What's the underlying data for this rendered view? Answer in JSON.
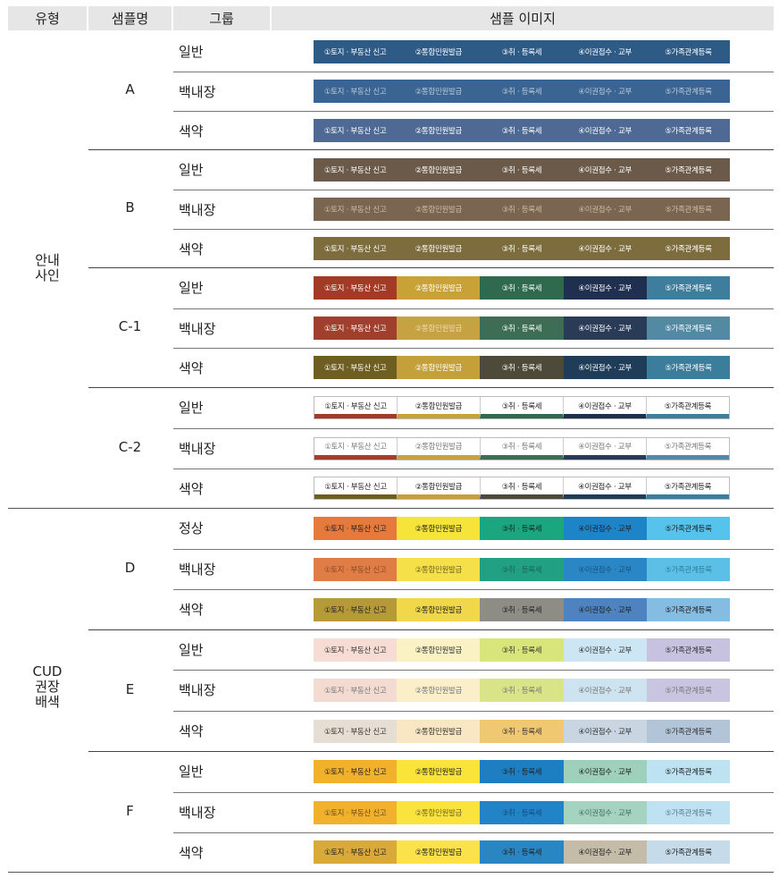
{
  "header": {
    "col_type": "유형",
    "col_name": "샘플명",
    "col_group": "그룹",
    "col_image": "샘플 이미지"
  },
  "labels": [
    "①토지 · 부동산 신고",
    "②통합민원발급",
    "③취 · 등록세",
    "④이권접수 · 교부",
    "⑤가족관계등록"
  ],
  "types": [
    {
      "label": "안내\n사인"
    },
    {
      "label": "CUD\n권장\n배색"
    }
  ],
  "samples": [
    {
      "name": "A",
      "rows": [
        {
          "group": "일반",
          "style": "solid",
          "bg": [
            "#2e5a86",
            "#2e5a86",
            "#2e5a86",
            "#2e5a86",
            "#2e5a86"
          ],
          "fg": [
            "#ffffff",
            "#ffffff",
            "#ffffff",
            "#ffffff",
            "#ffffff"
          ]
        },
        {
          "group": "백내장",
          "style": "solid",
          "bg": [
            "#3a6491",
            "#3a6491",
            "#3a6491",
            "#3a6491",
            "#3a6491"
          ],
          "fg": [
            "#b9c9db",
            "#b9c9db",
            "#b9c9db",
            "#b9c9db",
            "#b9c9db"
          ]
        },
        {
          "group": "색약",
          "style": "solid",
          "bg": [
            "#4e6a94",
            "#4e6a94",
            "#4e6a94",
            "#4e6a94",
            "#4e6a94"
          ],
          "fg": [
            "#ffffff",
            "#ffffff",
            "#ffffff",
            "#ffffff",
            "#ffffff"
          ]
        }
      ]
    },
    {
      "name": "B",
      "rows": [
        {
          "group": "일반",
          "style": "solid",
          "bg": [
            "#6b5a49",
            "#6b5a49",
            "#6b5a49",
            "#6b5a49",
            "#6b5a49"
          ],
          "fg": [
            "#ffffff",
            "#ffffff",
            "#ffffff",
            "#ffffff",
            "#ffffff"
          ]
        },
        {
          "group": "백내장",
          "style": "solid",
          "bg": [
            "#7a6650",
            "#7a6650",
            "#7a6650",
            "#7a6650",
            "#7a6650"
          ],
          "fg": [
            "#c9bba6",
            "#c9bba6",
            "#c9bba6",
            "#c9bba6",
            "#c9bba6"
          ]
        },
        {
          "group": "색약",
          "style": "solid",
          "bg": [
            "#7d6c3e",
            "#7d6c3e",
            "#7d6c3e",
            "#7d6c3e",
            "#7d6c3e"
          ],
          "fg": [
            "#ffffff",
            "#ffffff",
            "#ffffff",
            "#ffffff",
            "#ffffff"
          ]
        }
      ]
    },
    {
      "name": "C-1",
      "rows": [
        {
          "group": "일반",
          "style": "solid",
          "bg": [
            "#a33a26",
            "#c9a237",
            "#2f6a4f",
            "#1f2f4f",
            "#3f7d9c"
          ],
          "fg": [
            "#ffffff",
            "#ffffff",
            "#ffffff",
            "#ffffff",
            "#ffffff"
          ]
        },
        {
          "group": "백내장",
          "style": "solid",
          "bg": [
            "#a0402c",
            "#c6a243",
            "#3d6e55",
            "#2a3b57",
            "#5289a3"
          ],
          "fg": [
            "#ffffff",
            "#ebdcae",
            "#ffffff",
            "#ffffff",
            "#ffffff"
          ]
        },
        {
          "group": "색약",
          "style": "solid",
          "bg": [
            "#6f5e22",
            "#c4a03a",
            "#4e4a3a",
            "#1f3d58",
            "#3c7d9b"
          ],
          "fg": [
            "#ffffff",
            "#ffffff",
            "#ffffff",
            "#ffffff",
            "#ffffff"
          ]
        }
      ]
    },
    {
      "name": "C-2",
      "rows": [
        {
          "group": "일반",
          "style": "bar",
          "bg": [
            "#ffffff",
            "#ffffff",
            "#ffffff",
            "#ffffff",
            "#ffffff"
          ],
          "fg": [
            "#222222",
            "#222222",
            "#222222",
            "#222222",
            "#222222"
          ],
          "bar": [
            "#a33a26",
            "#c9a237",
            "#2f6a4f",
            "#1f2f4f",
            "#3f7d9c"
          ]
        },
        {
          "group": "백내장",
          "style": "bar",
          "bg": [
            "#ffffff",
            "#ffffff",
            "#ffffff",
            "#ffffff",
            "#ffffff"
          ],
          "fg": [
            "#777777",
            "#777777",
            "#777777",
            "#777777",
            "#777777"
          ],
          "bar": [
            "#a0402c",
            "#c6a243",
            "#3d6e55",
            "#2a3b57",
            "#5289a3"
          ]
        },
        {
          "group": "색약",
          "style": "bar",
          "bg": [
            "#ffffff",
            "#ffffff",
            "#ffffff",
            "#ffffff",
            "#ffffff"
          ],
          "fg": [
            "#222222",
            "#222222",
            "#222222",
            "#222222",
            "#222222"
          ],
          "bar": [
            "#6f5e22",
            "#c4a03a",
            "#4e4a3a",
            "#1f3d58",
            "#3c7d9b"
          ]
        }
      ]
    },
    {
      "name": "D",
      "rows": [
        {
          "group": "정상",
          "style": "solid",
          "bg": [
            "#e67a3c",
            "#f7e43a",
            "#1aa67e",
            "#1e84c8",
            "#56c3ec"
          ],
          "fg": [
            "#222222",
            "#222222",
            "#222222",
            "#222222",
            "#222222"
          ]
        },
        {
          "group": "백내장",
          "style": "solid",
          "bg": [
            "#e07c45",
            "#f5e04a",
            "#22a083",
            "#2a86c4",
            "#5cc0e6"
          ],
          "fg": [
            "#8a4a26",
            "#6e6320",
            "#16684f",
            "#16557e",
            "#2f7e9c"
          ]
        },
        {
          "group": "색약",
          "style": "solid",
          "bg": [
            "#b69a38",
            "#f0d84a",
            "#8d8d86",
            "#4f83c0",
            "#85bce4"
          ],
          "fg": [
            "#222222",
            "#222222",
            "#222222",
            "#222222",
            "#222222"
          ]
        }
      ]
    },
    {
      "name": "E",
      "rows": [
        {
          "group": "일반",
          "style": "solid",
          "bg": [
            "#f6dcd2",
            "#fbf2c4",
            "#d7e57a",
            "#cce6f3",
            "#c6c2e0"
          ],
          "fg": [
            "#333333",
            "#333333",
            "#333333",
            "#333333",
            "#333333"
          ]
        },
        {
          "group": "백내장",
          "style": "solid",
          "bg": [
            "#f3dbd2",
            "#faefc8",
            "#d9e388",
            "#cde3ef",
            "#c9c4e0"
          ],
          "fg": [
            "#777777",
            "#777777",
            "#777777",
            "#777777",
            "#777777"
          ]
        },
        {
          "group": "색약",
          "style": "solid",
          "bg": [
            "#e6ddd3",
            "#f8e7c2",
            "#f0c872",
            "#c9d6e2",
            "#b2c4d8"
          ],
          "fg": [
            "#333333",
            "#333333",
            "#333333",
            "#333333",
            "#333333"
          ]
        }
      ]
    },
    {
      "name": "F",
      "rows": [
        {
          "group": "일반",
          "style": "solid",
          "bg": [
            "#f1b12a",
            "#fbe43a",
            "#1e7ec2",
            "#9fd0bb",
            "#bde3f3"
          ],
          "fg": [
            "#222222",
            "#222222",
            "#222222",
            "#222222",
            "#222222"
          ]
        },
        {
          "group": "백내장",
          "style": "solid",
          "bg": [
            "#f2b12c",
            "#fae33c",
            "#2283c6",
            "#a4d3c0",
            "#bfe2f2"
          ],
          "fg": [
            "#6a4f16",
            "#6e6424",
            "#124e7c",
            "#4a6e60",
            "#5e7e8c"
          ]
        },
        {
          "group": "색약",
          "style": "solid",
          "bg": [
            "#d9aa3a",
            "#fbe24a",
            "#2a86c2",
            "#c4bca9",
            "#c5dbe9"
          ],
          "fg": [
            "#222222",
            "#222222",
            "#222222",
            "#222222",
            "#222222"
          ]
        }
      ]
    }
  ]
}
